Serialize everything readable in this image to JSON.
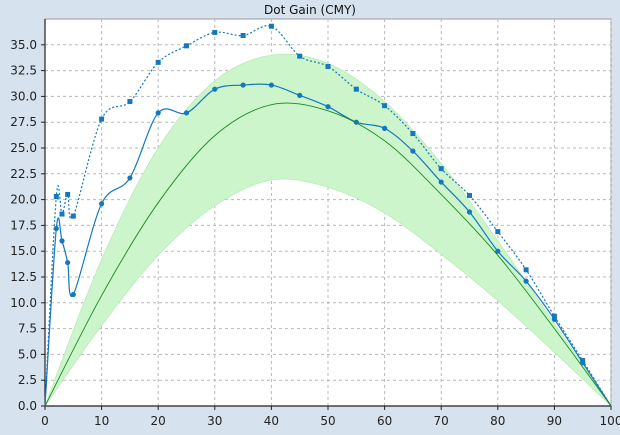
{
  "chart_data": {
    "type": "line",
    "title": "Dot Gain (CMY)",
    "xlabel": "",
    "ylabel": "",
    "xlim": [
      0,
      100
    ],
    "ylim": [
      0,
      37.5
    ],
    "x_ticks": [
      0,
      10,
      20,
      30,
      40,
      50,
      60,
      70,
      80,
      90,
      100
    ],
    "y_ticks": [
      0.0,
      2.5,
      5.0,
      7.5,
      10.0,
      12.5,
      15.0,
      17.5,
      20.0,
      22.5,
      25.0,
      27.5,
      30.0,
      32.5,
      35.0
    ],
    "grid": true,
    "legend": "none",
    "series": [
      {
        "style": "dotted-square-markers",
        "color": "#1478be",
        "x": [
          0,
          2,
          3,
          4,
          5,
          10,
          15,
          20,
          25,
          30,
          35,
          40,
          45,
          50,
          55,
          60,
          65,
          70,
          75,
          80,
          85,
          90,
          95,
          100
        ],
        "y": [
          0,
          20.3,
          18.6,
          20.5,
          18.4,
          27.8,
          29.5,
          33.3,
          34.9,
          36.2,
          35.9,
          36.8,
          33.9,
          32.9,
          30.7,
          29.1,
          26.4,
          23.0,
          20.4,
          16.9,
          13.2,
          8.7,
          4.4,
          0
        ]
      },
      {
        "style": "solid-circle-markers",
        "color": "#1478be",
        "x": [
          0,
          2,
          3,
          4,
          5,
          10,
          15,
          20,
          25,
          30,
          35,
          40,
          45,
          50,
          55,
          60,
          65,
          70,
          75,
          80,
          85,
          90,
          95,
          100
        ],
        "y": [
          0,
          17.2,
          16.0,
          13.9,
          10.8,
          19.6,
          22.1,
          28.4,
          28.4,
          30.7,
          31.1,
          31.1,
          30.1,
          29.0,
          27.5,
          26.9,
          24.7,
          21.7,
          18.8,
          15.0,
          12.1,
          8.4,
          4.2,
          0
        ]
      },
      {
        "style": "reference-line",
        "color": "#1a8a1a",
        "x": [
          0,
          10,
          20,
          30,
          40,
          50,
          60,
          70,
          80,
          90,
          100
        ],
        "y": [
          0,
          10.7,
          19.7,
          26.2,
          29.2,
          28.6,
          25.7,
          20.5,
          14.6,
          7.5,
          0
        ]
      }
    ],
    "tolerance_band": {
      "color": "#ccf5cc",
      "x": [
        0,
        10,
        20,
        30,
        40,
        50,
        60,
        70,
        80,
        90,
        100
      ],
      "upper": [
        0,
        14.2,
        25.0,
        31.5,
        34.0,
        33.2,
        29.5,
        23.5,
        16.0,
        8.0,
        0
      ],
      "lower": [
        0,
        7.8,
        14.6,
        19.4,
        21.9,
        21.2,
        18.7,
        14.7,
        10.2,
        5.2,
        0
      ]
    },
    "colors": {
      "page_background": "#d7e2ef",
      "plot_background": "#ffffff",
      "grid": "#b8b8b8",
      "axis": "#222222"
    }
  }
}
